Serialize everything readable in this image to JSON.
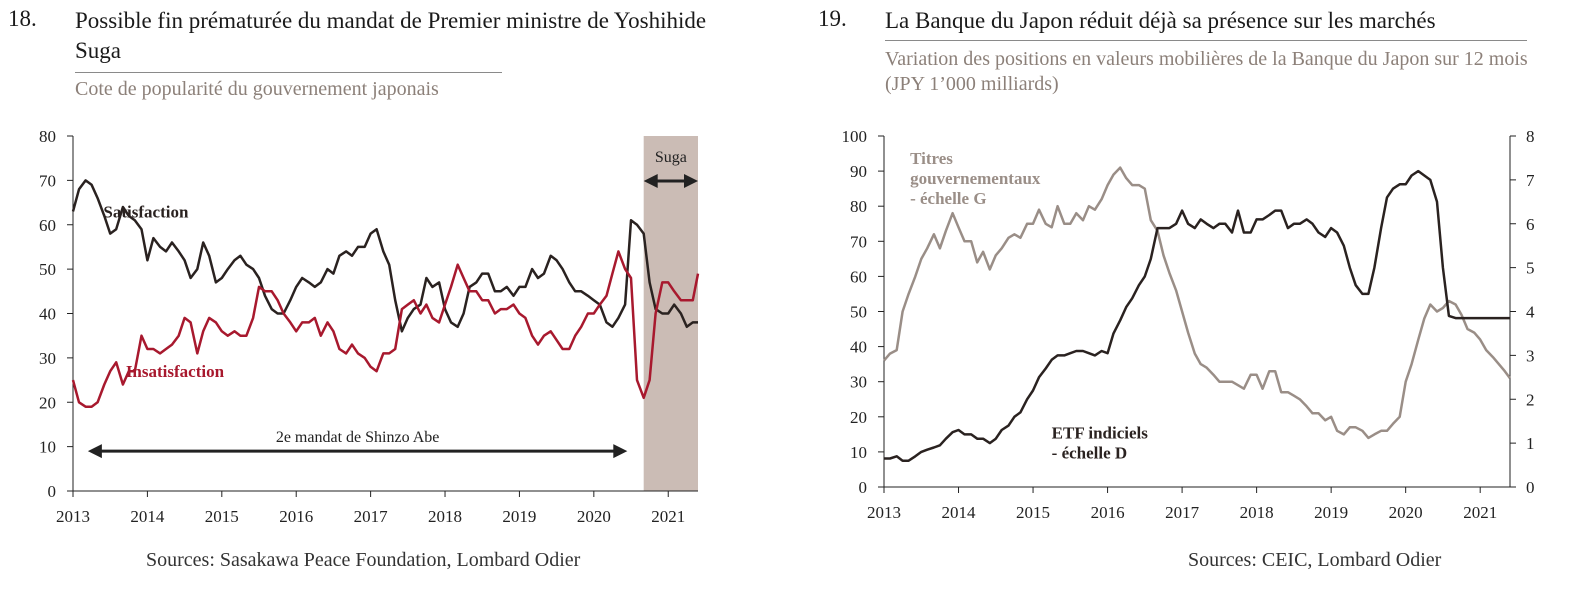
{
  "colors": {
    "dark": "#2a2220",
    "red": "#a8192e",
    "gray": "#9a8e87",
    "shade": "#cbbcb5",
    "axis": "#222222"
  },
  "chart_18": {
    "number": "18.",
    "title": "Possible fin prématurée du mandat de Premier ministre de Yoshihide Suga",
    "subtitle": "Cote de popularité du gouvernement japonais",
    "source": "Sources: Sasakawa Peace Foundation, Lombard Odier"
  },
  "chart_19": {
    "number": "19.",
    "title": "La Banque du Japon réduit déjà sa présence sur les marchés",
    "subtitle": "Variation des positions en valeurs mobilières de la Banque du Japon sur 12 mois (JPY 1’000 milliards)",
    "source": "Sources: CEIC, Lombard Odier"
  },
  "chart_data": [
    {
      "type": "line",
      "title": "Cote de popularité du gouvernement japonais",
      "x_range": [
        2013,
        2021.4
      ],
      "x_ticks": [
        "2013",
        "2014",
        "2015",
        "2016",
        "2017",
        "2018",
        "2019",
        "2020",
        "2021"
      ],
      "ylim": [
        0,
        80
      ],
      "y_ticks": [
        "0",
        "10",
        "20",
        "30",
        "40",
        "50",
        "60",
        "70",
        "80"
      ],
      "grid": false,
      "shaded_period": {
        "label": "Suga",
        "start": 2020.67,
        "end": 2021.4
      },
      "annotations": [
        {
          "text": "2e mandat de Shinzo Abe",
          "y": 9,
          "from": 2013.2,
          "to": 2020.45
        }
      ],
      "series": [
        {
          "name": "Satisfaction",
          "color": "dark",
          "label_at": [
            2013.98,
            63
          ],
          "x": [
            2013.0,
            2013.08,
            2013.17,
            2013.25,
            2013.33,
            2013.42,
            2013.5,
            2013.58,
            2013.67,
            2013.75,
            2013.83,
            2013.92,
            2014.0,
            2014.08,
            2014.17,
            2014.25,
            2014.33,
            2014.42,
            2014.5,
            2014.58,
            2014.67,
            2014.75,
            2014.83,
            2014.92,
            2015.0,
            2015.08,
            2015.17,
            2015.25,
            2015.33,
            2015.42,
            2015.5,
            2015.58,
            2015.67,
            2015.75,
            2015.83,
            2015.92,
            2016.0,
            2016.08,
            2016.17,
            2016.25,
            2016.33,
            2016.42,
            2016.5,
            2016.58,
            2016.67,
            2016.75,
            2016.83,
            2016.92,
            2017.0,
            2017.08,
            2017.17,
            2017.25,
            2017.33,
            2017.42,
            2017.5,
            2017.58,
            2017.67,
            2017.75,
            2017.83,
            2017.92,
            2018.0,
            2018.08,
            2018.17,
            2018.25,
            2018.33,
            2018.42,
            2018.5,
            2018.58,
            2018.67,
            2018.75,
            2018.83,
            2018.92,
            2019.0,
            2019.08,
            2019.17,
            2019.25,
            2019.33,
            2019.42,
            2019.5,
            2019.58,
            2019.67,
            2019.75,
            2019.83,
            2019.92,
            2020.0,
            2020.08,
            2020.17,
            2020.25,
            2020.33,
            2020.42,
            2020.5,
            2020.58,
            2020.67,
            2020.75,
            2020.83,
            2020.92,
            2021.0,
            2021.08,
            2021.17,
            2021.25,
            2021.33,
            2021.4
          ],
          "values": [
            63,
            68,
            70,
            69,
            66,
            62,
            58,
            59,
            64,
            62,
            61,
            59,
            52,
            57,
            55,
            54,
            56,
            54,
            52,
            48,
            50,
            56,
            53,
            47,
            48,
            50,
            52,
            53,
            51,
            50,
            48,
            44,
            41,
            40,
            40,
            43,
            46,
            48,
            47,
            46,
            47,
            50,
            49,
            53,
            54,
            53,
            55,
            55,
            58,
            59,
            54,
            51,
            43,
            36,
            39,
            41,
            42,
            48,
            46,
            47,
            41,
            38,
            37,
            40,
            46,
            47,
            49,
            49,
            45,
            45,
            46,
            44,
            46,
            46,
            50,
            48,
            49,
            53,
            52,
            50,
            47,
            45,
            45,
            44,
            43,
            42,
            38,
            37,
            39,
            42,
            61,
            60,
            58,
            47,
            41,
            40,
            40,
            42,
            40,
            37,
            38,
            38
          ]
        },
        {
          "name": "Insatisfaction",
          "color": "red",
          "label_at": [
            2014.37,
            27
          ],
          "x": [
            2013.0,
            2013.08,
            2013.17,
            2013.25,
            2013.33,
            2013.42,
            2013.5,
            2013.58,
            2013.67,
            2013.75,
            2013.83,
            2013.92,
            2014.0,
            2014.08,
            2014.17,
            2014.25,
            2014.33,
            2014.42,
            2014.5,
            2014.58,
            2014.67,
            2014.75,
            2014.83,
            2014.92,
            2015.0,
            2015.08,
            2015.17,
            2015.25,
            2015.33,
            2015.42,
            2015.5,
            2015.58,
            2015.67,
            2015.75,
            2015.83,
            2015.92,
            2016.0,
            2016.08,
            2016.17,
            2016.25,
            2016.33,
            2016.42,
            2016.5,
            2016.58,
            2016.67,
            2016.75,
            2016.83,
            2016.92,
            2017.0,
            2017.08,
            2017.17,
            2017.25,
            2017.33,
            2017.42,
            2017.5,
            2017.58,
            2017.67,
            2017.75,
            2017.83,
            2017.92,
            2018.0,
            2018.08,
            2018.17,
            2018.25,
            2018.33,
            2018.42,
            2018.5,
            2018.58,
            2018.67,
            2018.75,
            2018.83,
            2018.92,
            2019.0,
            2019.08,
            2019.17,
            2019.25,
            2019.33,
            2019.42,
            2019.5,
            2019.58,
            2019.67,
            2019.75,
            2019.83,
            2019.92,
            2020.0,
            2020.08,
            2020.17,
            2020.25,
            2020.33,
            2020.42,
            2020.5,
            2020.58,
            2020.67,
            2020.75,
            2020.83,
            2020.92,
            2021.0,
            2021.08,
            2021.17,
            2021.25,
            2021.33,
            2021.4
          ],
          "values": [
            25,
            20,
            19,
            19,
            20,
            24,
            27,
            29,
            24,
            27,
            27,
            35,
            32,
            32,
            31,
            32,
            33,
            35,
            39,
            38,
            31,
            36,
            39,
            38,
            36,
            35,
            36,
            35,
            35,
            39,
            46,
            45,
            45,
            43,
            40,
            38,
            36,
            38,
            38,
            39,
            35,
            38,
            36,
            32,
            31,
            33,
            31,
            30,
            28,
            27,
            31,
            31,
            32,
            41,
            42,
            43,
            40,
            42,
            39,
            38,
            42,
            46,
            51,
            48,
            45,
            45,
            43,
            43,
            40,
            41,
            41,
            42,
            40,
            39,
            35,
            33,
            35,
            36,
            34,
            32,
            32,
            35,
            37,
            40,
            40,
            42,
            44,
            49,
            54,
            50,
            48,
            25,
            21,
            25,
            40,
            47,
            47,
            45,
            43,
            43,
            43,
            49
          ]
        }
      ]
    },
    {
      "type": "line",
      "title": "Variation des positions en valeurs mobilières de la Banque du Japon sur 12 mois (JPY 1’000 milliards)",
      "x_range": [
        2013,
        2021.4
      ],
      "x_ticks": [
        "2013",
        "2014",
        "2015",
        "2016",
        "2017",
        "2018",
        "2019",
        "2020",
        "2021"
      ],
      "ylim_left": [
        0,
        100
      ],
      "y_ticks_left": [
        "0",
        "10",
        "20",
        "30",
        "40",
        "50",
        "60",
        "70",
        "80",
        "90",
        "100"
      ],
      "ylim_right": [
        0,
        8
      ],
      "y_ticks_right": [
        "0",
        "1",
        "2",
        "3",
        "4",
        "5",
        "6",
        "7",
        "8"
      ],
      "grid": false,
      "series": [
        {
          "name": "Titres gouvernementaux - échelle G",
          "axis": "left",
          "color": "gray",
          "label_lines": [
            "Titres",
            "gouvernementaux",
            "- échelle G"
          ],
          "label_at": [
            2013.35,
            92
          ],
          "x": [
            2013.0,
            2013.08,
            2013.17,
            2013.25,
            2013.33,
            2013.42,
            2013.5,
            2013.58,
            2013.67,
            2013.75,
            2013.83,
            2013.92,
            2014.0,
            2014.08,
            2014.17,
            2014.25,
            2014.33,
            2014.42,
            2014.5,
            2014.58,
            2014.67,
            2014.75,
            2014.83,
            2014.92,
            2015.0,
            2015.08,
            2015.17,
            2015.25,
            2015.33,
            2015.42,
            2015.5,
            2015.58,
            2015.67,
            2015.75,
            2015.83,
            2015.92,
            2016.0,
            2016.08,
            2016.17,
            2016.25,
            2016.33,
            2016.42,
            2016.5,
            2016.58,
            2016.67,
            2016.75,
            2016.83,
            2016.92,
            2017.0,
            2017.08,
            2017.17,
            2017.25,
            2017.33,
            2017.42,
            2017.5,
            2017.58,
            2017.67,
            2017.75,
            2017.83,
            2017.92,
            2018.0,
            2018.08,
            2018.17,
            2018.25,
            2018.33,
            2018.42,
            2018.5,
            2018.58,
            2018.67,
            2018.75,
            2018.83,
            2018.92,
            2019.0,
            2019.08,
            2019.17,
            2019.25,
            2019.33,
            2019.42,
            2019.5,
            2019.58,
            2019.67,
            2019.75,
            2019.83,
            2019.92,
            2020.0,
            2020.08,
            2020.17,
            2020.25,
            2020.33,
            2020.42,
            2020.5,
            2020.58,
            2020.67,
            2020.75,
            2020.83,
            2020.92,
            2021.0,
            2021.08,
            2021.17,
            2021.25,
            2021.33,
            2021.4
          ],
          "values": [
            36,
            38,
            39,
            50,
            55,
            60,
            65,
            68,
            72,
            68,
            73,
            78,
            74,
            70,
            70,
            64,
            67,
            62,
            66,
            68,
            71,
            72,
            71,
            75,
            75,
            79,
            75,
            74,
            80,
            75,
            75,
            78,
            76,
            80,
            79,
            82,
            86,
            89,
            91,
            88,
            86,
            86,
            85,
            76,
            73,
            66,
            61,
            56,
            50,
            44,
            38,
            35,
            34,
            32,
            30,
            30,
            30,
            29,
            28,
            32,
            32,
            28,
            33,
            33,
            27,
            27,
            26,
            25,
            23,
            21,
            21,
            19,
            20,
            16,
            15,
            17,
            17,
            16,
            14,
            15,
            16,
            16,
            18,
            20,
            30,
            35,
            42,
            48,
            52,
            50,
            51,
            53,
            52,
            49,
            45,
            44,
            42,
            39,
            37,
            35,
            33,
            31
          ]
        },
        {
          "name": "ETF indiciels - échelle D",
          "axis": "right",
          "color": "dark",
          "label_lines": [
            "ETF indiciels",
            "- échelle D"
          ],
          "label_at": [
            2015.25,
            1.1
          ],
          "x": [
            2013.0,
            2013.08,
            2013.17,
            2013.25,
            2013.33,
            2013.42,
            2013.5,
            2013.58,
            2013.67,
            2013.75,
            2013.83,
            2013.92,
            2014.0,
            2014.08,
            2014.17,
            2014.25,
            2014.33,
            2014.42,
            2014.5,
            2014.58,
            2014.67,
            2014.75,
            2014.83,
            2014.92,
            2015.0,
            2015.08,
            2015.17,
            2015.25,
            2015.33,
            2015.42,
            2015.5,
            2015.58,
            2015.67,
            2015.75,
            2015.83,
            2015.92,
            2016.0,
            2016.08,
            2016.17,
            2016.25,
            2016.33,
            2016.42,
            2016.5,
            2016.58,
            2016.67,
            2016.75,
            2016.83,
            2016.92,
            2017.0,
            2017.08,
            2017.17,
            2017.25,
            2017.33,
            2017.42,
            2017.5,
            2017.58,
            2017.67,
            2017.75,
            2017.83,
            2017.92,
            2018.0,
            2018.08,
            2018.17,
            2018.25,
            2018.33,
            2018.42,
            2018.5,
            2018.58,
            2018.67,
            2018.75,
            2018.83,
            2018.92,
            2019.0,
            2019.08,
            2019.17,
            2019.25,
            2019.33,
            2019.42,
            2019.5,
            2019.58,
            2019.67,
            2019.75,
            2019.83,
            2019.92,
            2020.0,
            2020.08,
            2020.17,
            2020.25,
            2020.33,
            2020.42,
            2020.5,
            2020.58,
            2020.67,
            2020.75,
            2020.83,
            2020.92,
            2021.0,
            2021.08,
            2021.17,
            2021.25,
            2021.33,
            2021.4
          ],
          "values": [
            0.65,
            0.65,
            0.7,
            0.6,
            0.6,
            0.7,
            0.8,
            0.85,
            0.9,
            0.95,
            1.1,
            1.25,
            1.3,
            1.2,
            1.2,
            1.1,
            1.1,
            1.0,
            1.1,
            1.3,
            1.4,
            1.6,
            1.7,
            2.0,
            2.2,
            2.5,
            2.7,
            2.9,
            3.0,
            3.0,
            3.05,
            3.1,
            3.1,
            3.05,
            3.0,
            3.1,
            3.05,
            3.5,
            3.8,
            4.1,
            4.3,
            4.6,
            4.8,
            5.2,
            5.9,
            5.9,
            5.9,
            6.0,
            6.3,
            6.0,
            5.9,
            6.1,
            6.0,
            5.9,
            6.0,
            6.0,
            5.8,
            6.3,
            5.8,
            5.8,
            6.1,
            6.1,
            6.2,
            6.3,
            6.3,
            5.9,
            6.0,
            6.0,
            6.1,
            6.0,
            5.8,
            5.7,
            5.9,
            5.8,
            5.5,
            5.0,
            4.6,
            4.4,
            4.4,
            5.0,
            5.9,
            6.6,
            6.8,
            6.9,
            6.9,
            7.1,
            7.2,
            7.1,
            7.0,
            6.5,
            5.0,
            3.9,
            3.85,
            3.85,
            3.85,
            3.85,
            3.85,
            3.85,
            3.85,
            3.85,
            3.85,
            3.85
          ]
        }
      ]
    }
  ]
}
